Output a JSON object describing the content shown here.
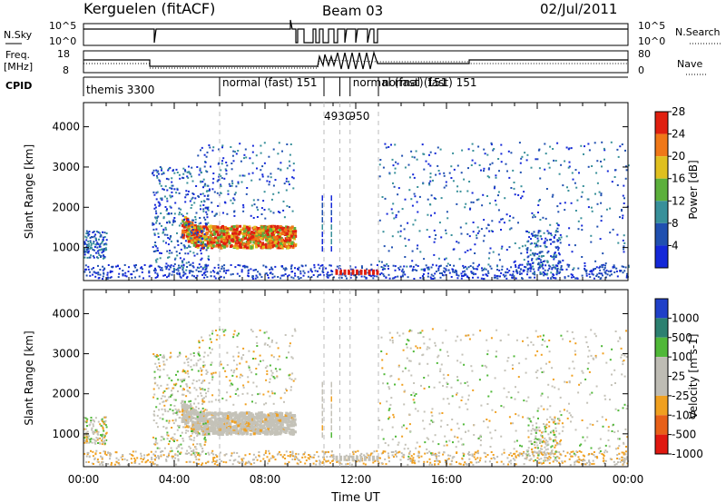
{
  "header": {
    "station": "Kerguelen (fitACF)",
    "beam": "Beam 03",
    "date": "02/Jul/2011"
  },
  "strip_panels": {
    "nsky": {
      "left_label": "N.Sky",
      "left_ticks": [
        "10^5",
        "10^0"
      ],
      "right_label": "N.Search",
      "right_ticks": [
        "10^5",
        "10^0"
      ]
    },
    "freq": {
      "left_label_1": "Freq.",
      "left_label_2": "[MHz]",
      "left_ticks": [
        "18",
        "8"
      ],
      "right_label": "Nave",
      "right_ticks": [
        "80",
        "0"
      ]
    },
    "cpid": {
      "label": "CPID",
      "segments": [
        {
          "text": "themis 3300",
          "start_h": 0.0
        },
        {
          "text": "normal (fast) 151",
          "start_h": 6.0
        },
        {
          "text": "4930",
          "start_h": 10.6
        },
        {
          "text": "950",
          "start_h": 11.3
        },
        {
          "text": "normal (fast) 151",
          "start_h": 11.75
        },
        {
          "text": "normal (fast) 151",
          "start_h": 13.0
        }
      ]
    }
  },
  "chart_data": [
    {
      "type": "heatmap",
      "name": "power",
      "ylabel": "Slant Range [km]",
      "yticks": [
        1000,
        2000,
        3000,
        4000
      ],
      "ylim": [
        180,
        4600
      ],
      "xlim": [
        0,
        24
      ],
      "xticks": [
        "00:00",
        "04:00",
        "08:00",
        "12:00",
        "16:00",
        "20:00",
        "00:00"
      ],
      "colorbar": {
        "label": "Power [dB]",
        "ticks": [
          "4",
          "8",
          "12",
          "16",
          "20",
          "24",
          "28"
        ],
        "colors": [
          "#1428d8",
          "#2050b0",
          "#38909a",
          "#5cb03c",
          "#e0c020",
          "#f07818",
          "#e02010"
        ]
      }
    },
    {
      "type": "heatmap",
      "name": "velocity",
      "ylabel": "Slant Range [km]",
      "yticks": [
        1000,
        2000,
        3000,
        4000
      ],
      "ylim": [
        180,
        4600
      ],
      "xlim": [
        0,
        24
      ],
      "xticks": [
        "00:00",
        "04:00",
        "08:00",
        "12:00",
        "16:00",
        "20:00",
        "00:00"
      ],
      "xlabel": "Time UT",
      "colorbar": {
        "label": "Velocity [m s-1]",
        "ticks": [
          "1000",
          "500",
          "100",
          "25",
          "-25",
          "-100",
          "-500",
          "-1000"
        ],
        "colors": [
          "#2040c8",
          "#2c8070",
          "#50b838",
          "#bebcb4",
          "#bebcb4",
          "#f0a020",
          "#e86018",
          "#e01810"
        ]
      }
    }
  ]
}
